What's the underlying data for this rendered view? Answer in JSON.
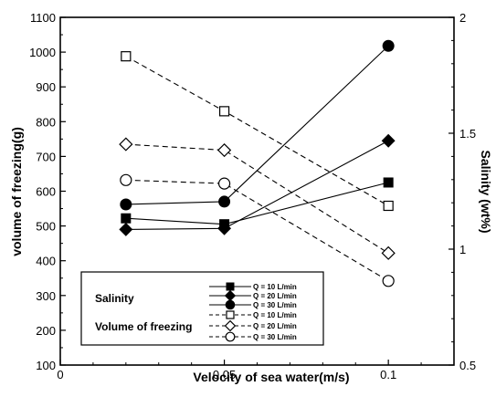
{
  "chart_data": {
    "type": "line",
    "xlabel": "Velocity of sea water(m/s)",
    "ylabel_left": "volume of freezing(g)",
    "ylabel_right": "Salinity (wt%)",
    "xlim": [
      0,
      0.12
    ],
    "ylim_left": [
      100,
      1100
    ],
    "ylim_right": [
      0.5,
      2
    ],
    "x_ticks": [
      0,
      0.05,
      0.1
    ],
    "x_tick_labels": [
      "0",
      "0.05",
      "0.1"
    ],
    "y_left_ticks": [
      100,
      200,
      300,
      400,
      500,
      600,
      700,
      800,
      900,
      1000,
      1100
    ],
    "y_left_tick_labels": [
      "100",
      "200",
      "300",
      "400",
      "500",
      "600",
      "700",
      "800",
      "900",
      "1000",
      "1100"
    ],
    "y_right_ticks": [
      0.5,
      1,
      1.5,
      2
    ],
    "y_right_tick_labels": [
      "0.5",
      "1",
      "1.5",
      "2"
    ],
    "legend_groups": {
      "salinity": "Salinity",
      "volume": "Volume of freezing"
    },
    "series": [
      {
        "name": "Q = 10 L/min",
        "legend_label": "Q = 10 L/min",
        "group": "salinity",
        "marker": "square",
        "filled": true,
        "dash": false,
        "x": [
          0.02,
          0.05,
          0.1
        ],
        "values": [
          522,
          505,
          625
        ]
      },
      {
        "name": "Q = 20 L/min",
        "legend_label": "Q = 20 L/min",
        "group": "salinity",
        "marker": "diamond",
        "filled": true,
        "dash": false,
        "x": [
          0.02,
          0.05,
          0.1
        ],
        "values": [
          490,
          493,
          745
        ]
      },
      {
        "name": "Q = 30 L/min",
        "legend_label": "Q = 30 L/min",
        "group": "salinity",
        "marker": "circle",
        "filled": true,
        "dash": false,
        "x": [
          0.02,
          0.05,
          0.1
        ],
        "values": [
          562,
          570,
          1018
        ]
      },
      {
        "name": "Q = 10 L/min",
        "legend_label": "Q = 10 L/min",
        "group": "volume",
        "marker": "square",
        "filled": false,
        "dash": true,
        "x": [
          0.02,
          0.05,
          0.1
        ],
        "values": [
          988,
          830,
          558
        ]
      },
      {
        "name": "Q = 20 L/min",
        "legend_label": "Q = 20 L/min",
        "group": "volume",
        "marker": "diamond",
        "filled": false,
        "dash": true,
        "x": [
          0.02,
          0.05,
          0.1
        ],
        "values": [
          735,
          718,
          422
        ]
      },
      {
        "name": "Q = 30 L/min",
        "legend_label": "Q = 30 L/min",
        "group": "volume",
        "marker": "circle",
        "filled": false,
        "dash": true,
        "x": [
          0.02,
          0.05,
          0.1
        ],
        "values": [
          632,
          622,
          342
        ]
      }
    ],
    "legend_position": "bottom-left",
    "grid": false,
    "colors": {
      "line": "#000000",
      "background": "#ffffff"
    }
  }
}
